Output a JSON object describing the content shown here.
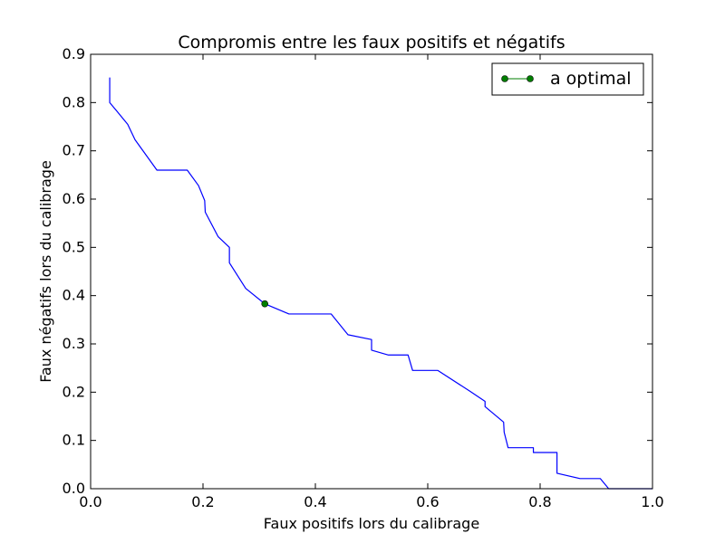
{
  "chart_data": {
    "type": "line",
    "title": "Compromis entre les faux positifs et négatifs",
    "xlabel": "Faux positifs lors du calibrage",
    "ylabel": "Faux négatifs lors du calibrage",
    "xlim": [
      0.0,
      1.0
    ],
    "ylim": [
      0.0,
      0.9
    ],
    "xticks": [
      "0.0",
      "0.2",
      "0.4",
      "0.6",
      "0.8",
      "1.0"
    ],
    "yticks": [
      "0.0",
      "0.1",
      "0.2",
      "0.3",
      "0.4",
      "0.5",
      "0.6",
      "0.7",
      "0.8",
      "0.9"
    ],
    "grid": false,
    "legend_position": "top-right",
    "series": [
      {
        "color": "#0000ff",
        "x": [
          0.034,
          0.034,
          0.066,
          0.079,
          0.118,
          0.172,
          0.192,
          0.203,
          0.204,
          0.227,
          0.247,
          0.247,
          0.276,
          0.31,
          0.353,
          0.428,
          0.458,
          0.5,
          0.5,
          0.53,
          0.565,
          0.573,
          0.618,
          0.675,
          0.702,
          0.702,
          0.735,
          0.736,
          0.743,
          0.788,
          0.788,
          0.83,
          0.83,
          0.871,
          0.907,
          0.922,
          1.0
        ],
        "y": [
          0.852,
          0.8,
          0.755,
          0.723,
          0.66,
          0.66,
          0.628,
          0.597,
          0.573,
          0.522,
          0.5,
          0.468,
          0.415,
          0.383,
          0.362,
          0.362,
          0.319,
          0.309,
          0.287,
          0.277,
          0.277,
          0.245,
          0.245,
          0.202,
          0.181,
          0.17,
          0.138,
          0.117,
          0.085,
          0.085,
          0.075,
          0.075,
          0.032,
          0.021,
          0.021,
          0.0,
          0.0
        ]
      },
      {
        "name": "a optimal",
        "color": "#007f00",
        "marker": "circle",
        "x": [
          0.31
        ],
        "y": [
          0.383
        ]
      }
    ]
  }
}
